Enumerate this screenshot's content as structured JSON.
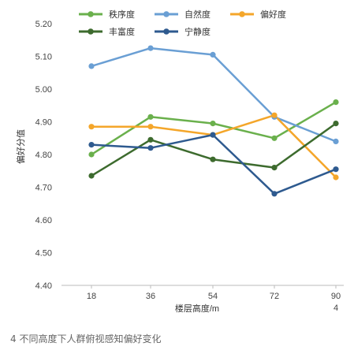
{
  "caption": "4 不同高度下人群俯视感知偏好变化",
  "chart_data": {
    "type": "line",
    "xlabel": "楼层高度/m",
    "ylabel": "偏好分值",
    "x": [
      "18",
      "36",
      "54",
      "72",
      "90"
    ],
    "x_extra_label": "4",
    "ylim": [
      4.4,
      5.2
    ],
    "yticks": [
      "4.40",
      "4.50",
      "4.60",
      "4.70",
      "4.80",
      "4.90",
      "5.00",
      "5.10",
      "5.20"
    ],
    "grid": false,
    "legend_position": "top",
    "series": [
      {
        "name": "秩序度",
        "color": "#6ab04c",
        "values": [
          4.8,
          4.915,
          4.895,
          4.85,
          4.96
        ]
      },
      {
        "name": "自然度",
        "color": "#6a9fd4",
        "values": [
          5.07,
          5.125,
          5.105,
          4.915,
          4.84
        ]
      },
      {
        "name": "偏好度",
        "color": "#f4a62a",
        "values": [
          4.885,
          4.885,
          4.86,
          4.92,
          4.73
        ]
      },
      {
        "name": "丰富度",
        "color": "#3d6b2e",
        "values": [
          4.735,
          4.845,
          4.785,
          4.76,
          4.895
        ]
      },
      {
        "name": "宁静度",
        "color": "#2e5a8f",
        "values": [
          4.83,
          4.82,
          4.86,
          4.68,
          4.755
        ]
      }
    ]
  }
}
